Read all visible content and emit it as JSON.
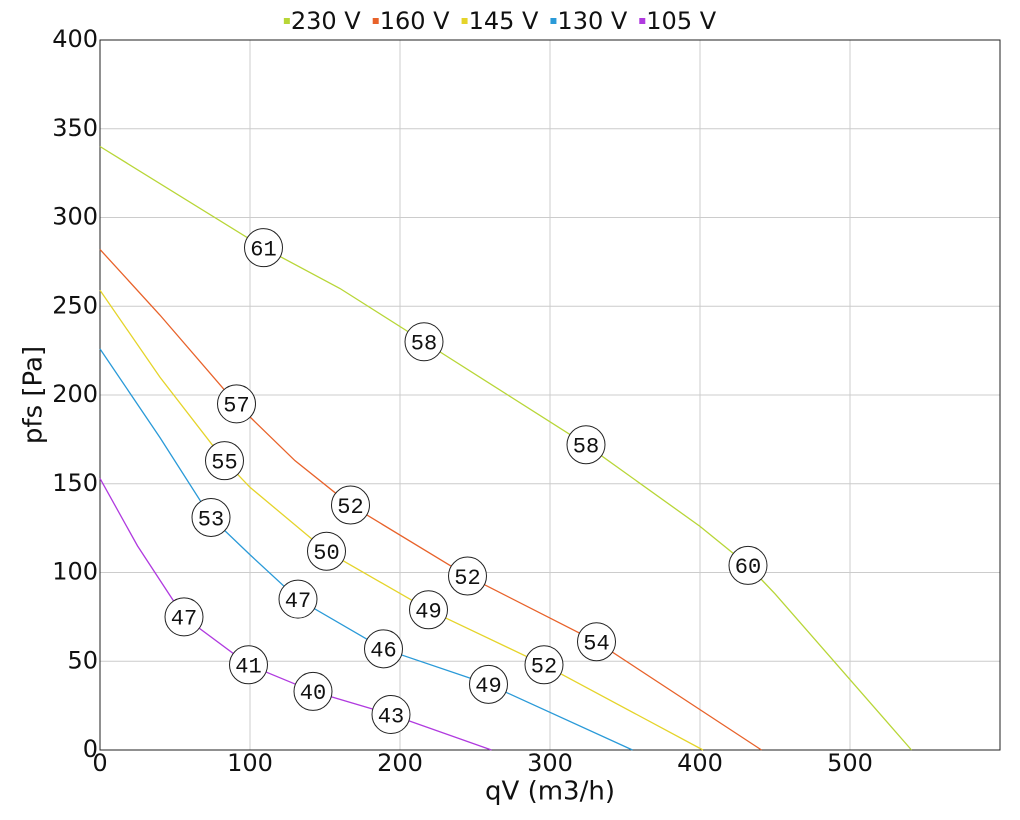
{
  "chart_data": {
    "type": "line",
    "xlabel": "qV (m3/h)",
    "ylabel": "pfs [Pa]",
    "xlim": [
      0,
      600
    ],
    "ylim": [
      0,
      400
    ],
    "xticks": [
      0,
      100,
      200,
      300,
      400,
      500
    ],
    "yticks": [
      0,
      50,
      100,
      150,
      200,
      250,
      300,
      350,
      400
    ],
    "grid": true,
    "legend": "top",
    "series": [
      {
        "name": "230 V",
        "color": "#b8d637",
        "x": [
          0,
          109,
          160,
          216,
          324,
          400,
          432,
          450,
          541
        ],
        "values": [
          340,
          283,
          260,
          230,
          172,
          126,
          104,
          88,
          0
        ]
      },
      {
        "name": "160 V",
        "color": "#e8622a",
        "x": [
          0,
          40,
          91,
          130,
          167,
          245,
          331,
          441
        ],
        "values": [
          282,
          245,
          195,
          163,
          138,
          98,
          61,
          0
        ]
      },
      {
        "name": "145 V",
        "color": "#e5d42a",
        "x": [
          0,
          40,
          83,
          100,
          151,
          219,
          296,
          402
        ],
        "values": [
          259,
          210,
          163,
          148,
          112,
          79,
          48,
          0
        ]
      },
      {
        "name": "130 V",
        "color": "#2a9ad8",
        "x": [
          0,
          40,
          74,
          100,
          132,
          189,
          259,
          355
        ],
        "values": [
          226,
          176,
          131,
          110,
          85,
          57,
          37,
          0
        ]
      },
      {
        "name": "105 V",
        "color": "#b03adf",
        "x": [
          0,
          25,
          56,
          99,
          142,
          194,
          261
        ],
        "values": [
          153,
          115,
          75,
          48,
          33,
          20,
          0
        ]
      }
    ],
    "annotations": [
      {
        "text": "61",
        "x": 109,
        "y": 283
      },
      {
        "text": "58",
        "x": 216,
        "y": 230
      },
      {
        "text": "58",
        "x": 324,
        "y": 172
      },
      {
        "text": "60",
        "x": 432,
        "y": 104
      },
      {
        "text": "57",
        "x": 91,
        "y": 195
      },
      {
        "text": "52",
        "x": 167,
        "y": 138
      },
      {
        "text": "52",
        "x": 245,
        "y": 98
      },
      {
        "text": "54",
        "x": 331,
        "y": 61
      },
      {
        "text": "55",
        "x": 83,
        "y": 163
      },
      {
        "text": "50",
        "x": 151,
        "y": 112
      },
      {
        "text": "49",
        "x": 219,
        "y": 79
      },
      {
        "text": "52",
        "x": 296,
        "y": 48
      },
      {
        "text": "53",
        "x": 74,
        "y": 131
      },
      {
        "text": "47",
        "x": 132,
        "y": 85
      },
      {
        "text": "46",
        "x": 189,
        "y": 57
      },
      {
        "text": "49",
        "x": 259,
        "y": 37
      },
      {
        "text": "47",
        "x": 56,
        "y": 75
      },
      {
        "text": "41",
        "x": 99,
        "y": 48
      },
      {
        "text": "40",
        "x": 142,
        "y": 33
      },
      {
        "text": "43",
        "x": 194,
        "y": 20
      }
    ]
  }
}
